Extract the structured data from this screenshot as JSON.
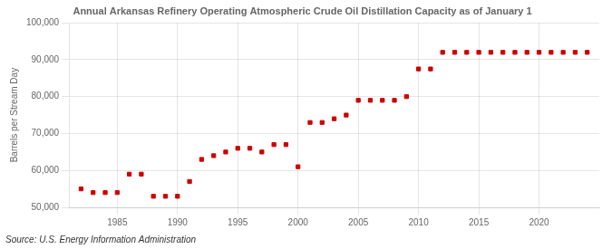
{
  "chart_data": {
    "type": "scatter",
    "title": "Annual Arkansas Refinery Operating Atmospheric Crude Oil Distillation Capacity as of January 1",
    "ylabel": "Barrels per Stream Day",
    "source": "Source: U.S. Energy Information Administration",
    "color": "#cc0000",
    "marker": "square",
    "grid": true,
    "x": [
      1982,
      1983,
      1984,
      1985,
      1986,
      1987,
      1988,
      1989,
      1990,
      1991,
      1992,
      1993,
      1994,
      1995,
      1996,
      1997,
      1998,
      1999,
      2000,
      2001,
      2002,
      2003,
      2004,
      2005,
      2006,
      2007,
      2008,
      2009,
      2010,
      2011,
      2012,
      2013,
      2014,
      2015,
      2016,
      2017,
      2018,
      2019,
      2020,
      2021,
      2022,
      2023,
      2024
    ],
    "values": [
      55000,
      54000,
      54000,
      54000,
      59000,
      59000,
      53000,
      53000,
      53000,
      57000,
      63000,
      64000,
      65000,
      66000,
      66000,
      65000,
      67000,
      67000,
      61000,
      73000,
      73000,
      74000,
      75000,
      79000,
      79000,
      79000,
      79000,
      80000,
      87500,
      87500,
      92000,
      92000,
      92000,
      92000,
      92000,
      92000,
      92000,
      92000,
      92000,
      92000,
      92000,
      92000,
      92000
    ],
    "xlim": [
      1981,
      2025
    ],
    "xticks": [
      1985,
      1990,
      1995,
      2000,
      2005,
      2010,
      2015,
      2020
    ],
    "ylim": [
      50000,
      100000
    ],
    "yticks": [
      {
        "value": 50000,
        "label": "50,000"
      },
      {
        "value": 60000,
        "label": "60,000"
      },
      {
        "value": 70000,
        "label": "70,000"
      },
      {
        "value": 80000,
        "label": "80,000"
      },
      {
        "value": 90000,
        "label": "90,000"
      },
      {
        "value": 100000,
        "label": "100,000"
      }
    ]
  }
}
